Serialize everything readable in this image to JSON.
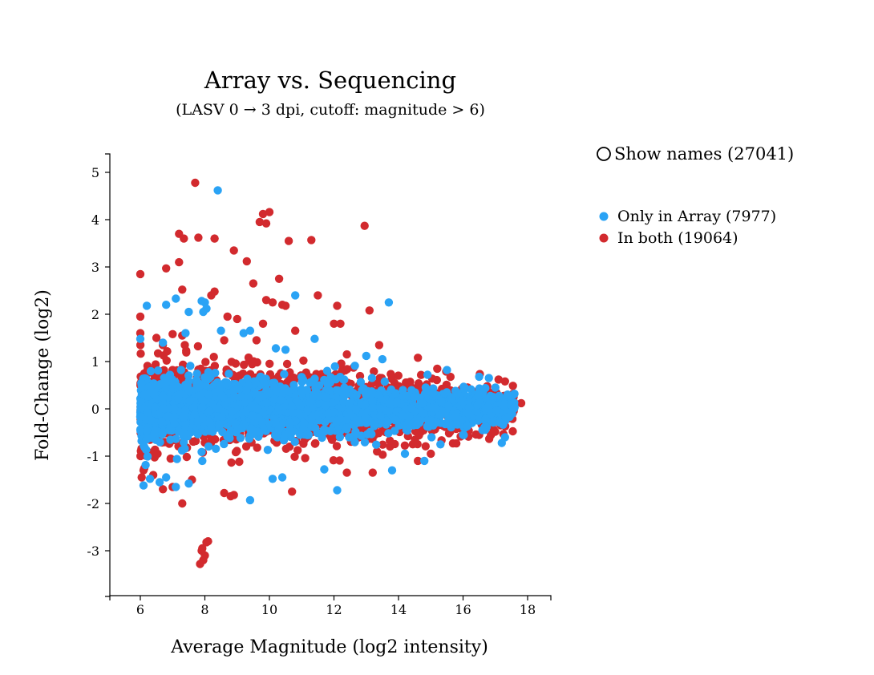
{
  "chart_data": {
    "type": "scatter",
    "title": "Array vs. Sequencing",
    "subtitle": "(LASV 0 → 3 dpi, cutoff: magnitude > 6)",
    "xlabel": "Average Magnitude (log2 intensity)",
    "ylabel": "Fold-Change (log2)",
    "xlim": [
      5,
      18.7
    ],
    "ylim": [
      -3.95,
      5.4
    ],
    "x_ticks": [
      "6",
      "8",
      "10",
      "12",
      "14",
      "16",
      "18"
    ],
    "y_ticks": [
      "5",
      "4",
      "3",
      "2",
      "1",
      "0",
      "-1",
      "-2",
      "-3"
    ],
    "grid": false,
    "legend_position": "right",
    "series": [
      {
        "name": "Only in Array (7977)",
        "color": "#2aa3f5",
        "count": 7977,
        "notable_points": [
          [
            8.4,
            4.62
          ],
          [
            6.2,
            2.18
          ],
          [
            6.8,
            2.2
          ],
          [
            7.1,
            2.33
          ],
          [
            7.9,
            2.28
          ],
          [
            8.0,
            2.25
          ],
          [
            8.05,
            2.12
          ],
          [
            7.95,
            2.05
          ],
          [
            10.8,
            2.4
          ],
          [
            13.7,
            2.25
          ],
          [
            6.0,
            1.48
          ],
          [
            7.5,
            2.05
          ],
          [
            8.5,
            1.65
          ],
          [
            9.2,
            1.6
          ],
          [
            9.4,
            1.65
          ],
          [
            11.4,
            1.48
          ],
          [
            6.7,
            1.4
          ],
          [
            7.4,
            1.6
          ],
          [
            10.2,
            1.28
          ],
          [
            10.5,
            1.25
          ],
          [
            13.0,
            1.12
          ],
          [
            13.5,
            1.05
          ],
          [
            14.9,
            0.72
          ],
          [
            15.5,
            0.82
          ],
          [
            16.5,
            0.68
          ],
          [
            16.8,
            0.65
          ],
          [
            17.0,
            0.45
          ],
          [
            17.3,
            -0.6
          ],
          [
            17.2,
            -0.72
          ],
          [
            6.1,
            -1.62
          ],
          [
            6.3,
            -1.48
          ],
          [
            6.6,
            -1.55
          ],
          [
            6.8,
            -1.45
          ],
          [
            7.1,
            -1.65
          ],
          [
            7.5,
            -1.58
          ],
          [
            9.4,
            -1.93
          ],
          [
            10.1,
            -1.48
          ],
          [
            10.4,
            -1.45
          ],
          [
            12.1,
            -1.72
          ],
          [
            11.7,
            -1.28
          ],
          [
            13.8,
            -1.3
          ],
          [
            14.8,
            -1.1
          ],
          [
            15.3,
            -0.75
          ],
          [
            16.0,
            -0.55
          ],
          [
            16.6,
            -0.45
          ],
          [
            14.2,
            -0.95
          ]
        ]
      },
      {
        "name": "In both (19064)",
        "color": "#d22a2e",
        "count": 19064,
        "notable_points": [
          [
            7.7,
            4.78
          ],
          [
            9.8,
            4.12
          ],
          [
            10.0,
            4.16
          ],
          [
            9.7,
            3.95
          ],
          [
            9.9,
            3.92
          ],
          [
            12.95,
            3.87
          ],
          [
            7.2,
            3.7
          ],
          [
            7.35,
            3.6
          ],
          [
            7.8,
            3.62
          ],
          [
            8.3,
            3.6
          ],
          [
            10.6,
            3.55
          ],
          [
            11.3,
            3.57
          ],
          [
            8.9,
            3.35
          ],
          [
            7.2,
            3.1
          ],
          [
            6.8,
            2.97
          ],
          [
            9.3,
            3.12
          ],
          [
            6.0,
            2.85
          ],
          [
            10.3,
            2.75
          ],
          [
            9.5,
            2.65
          ],
          [
            7.3,
            2.52
          ],
          [
            8.3,
            2.48
          ],
          [
            8.2,
            2.4
          ],
          [
            9.9,
            2.3
          ],
          [
            10.1,
            2.25
          ],
          [
            10.4,
            2.2
          ],
          [
            10.5,
            2.18
          ],
          [
            11.5,
            2.4
          ],
          [
            12.1,
            2.18
          ],
          [
            13.1,
            2.08
          ],
          [
            6.0,
            1.95
          ],
          [
            8.7,
            1.95
          ],
          [
            9.0,
            1.9
          ],
          [
            9.8,
            1.8
          ],
          [
            12.0,
            1.8
          ],
          [
            12.2,
            1.8
          ],
          [
            10.8,
            1.65
          ],
          [
            6.0,
            1.6
          ],
          [
            7.0,
            1.58
          ],
          [
            7.3,
            1.55
          ],
          [
            6.5,
            1.5
          ],
          [
            8.6,
            1.45
          ],
          [
            9.6,
            1.45
          ],
          [
            12.4,
            1.15
          ],
          [
            13.4,
            1.35
          ],
          [
            14.6,
            1.08
          ],
          [
            15.2,
            0.85
          ],
          [
            17.1,
            0.62
          ],
          [
            17.3,
            0.58
          ],
          [
            17.8,
            0.12
          ],
          [
            6.1,
            -1.3
          ],
          [
            6.4,
            -1.4
          ],
          [
            6.7,
            -1.7
          ],
          [
            7.0,
            -1.65
          ],
          [
            7.3,
            -2.0
          ],
          [
            7.6,
            -1.5
          ],
          [
            8.6,
            -1.78
          ],
          [
            8.8,
            -1.85
          ],
          [
            8.9,
            -1.82
          ],
          [
            10.7,
            -1.75
          ],
          [
            12.4,
            -1.35
          ],
          [
            13.2,
            -1.35
          ],
          [
            14.6,
            -1.1
          ],
          [
            15.0,
            -0.95
          ],
          [
            16.5,
            -0.55
          ],
          [
            7.9,
            -3.0
          ],
          [
            7.95,
            -3.2
          ],
          [
            7.85,
            -3.28
          ],
          [
            8.05,
            -2.82
          ],
          [
            8.0,
            -3.1
          ],
          [
            7.92,
            -2.95
          ],
          [
            8.1,
            -2.8
          ]
        ]
      }
    ]
  },
  "controls": {
    "show_names_label": "Show names (27041)"
  }
}
